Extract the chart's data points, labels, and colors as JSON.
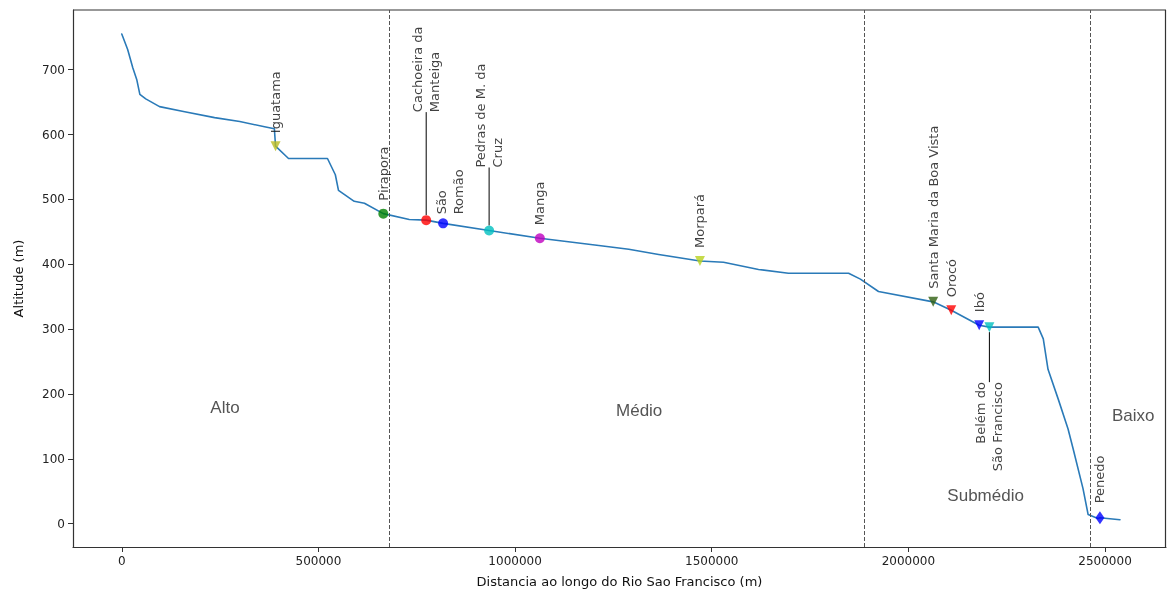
{
  "chart_data": {
    "type": "line",
    "xlabel": "Distancia ao longo do Rio Sao Francisco (m)",
    "ylabel": "Altitude (m)",
    "xlim": [
      -124000,
      2655000
    ],
    "ylim": [
      -36,
      792
    ],
    "xticks": [
      0,
      500000,
      1000000,
      1500000,
      2000000,
      2500000
    ],
    "yticks": [
      0,
      100,
      200,
      300,
      400,
      500,
      600,
      700
    ],
    "grid": false,
    "legend": false,
    "series": [
      {
        "color": "#2a7ab8",
        "marker": "none",
        "x": [
          0,
          15000,
          28000,
          38000,
          46000,
          61000,
          96000,
          160000,
          236000,
          300000,
          363000,
          388000,
          391000,
          424000,
          523000,
          543000,
          551000,
          591000,
          617000,
          665000,
          731000,
          774000,
          817000,
          934000,
          1063000,
          1213000,
          1289000,
          1365000,
          1470000,
          1530000,
          1619000,
          1695000,
          1848000,
          1878000,
          1924000,
          2063000,
          2109000,
          2180000,
          2206000,
          2330000,
          2343000,
          2355000,
          2381000,
          2406000,
          2419000,
          2444000,
          2457000,
          2482000,
          2487000,
          2538000
        ],
        "values": [
          755,
          731,
          703,
          685,
          662,
          655,
          643,
          635,
          626,
          620,
          612,
          609,
          582,
          563,
          563,
          538,
          514,
          497,
          494,
          478,
          469,
          468,
          463,
          452,
          440,
          429,
          423,
          415,
          405,
          403,
          392,
          386,
          386,
          377,
          358,
          342,
          329,
          306,
          303,
          303,
          285,
          238,
          192,
          146,
          115,
          54,
          14,
          8,
          9,
          6
        ]
      },
      {
        "type": "scatter",
        "name": "Iguatama",
        "color": "#bcbd22",
        "marker": "triangle",
        "x": [
          391000
        ],
        "values": [
          582
        ]
      },
      {
        "type": "scatter",
        "name": "Pirapora",
        "color": "#008000",
        "marker": "circle",
        "x": [
          665000
        ],
        "values": [
          478
        ]
      },
      {
        "type": "scatter",
        "name": "Cachoeira da\nManteiga",
        "color": "#ff0000",
        "marker": "circle",
        "x": [
          774000
        ],
        "values": [
          468
        ]
      },
      {
        "type": "scatter",
        "name": "São\nRomão",
        "color": "#0000ff",
        "marker": "circle",
        "x": [
          817000
        ],
        "values": [
          463
        ]
      },
      {
        "type": "scatter",
        "name": "Pedras de M. da\nCruz",
        "color": "#00bfbf",
        "marker": "circle",
        "x": [
          934000
        ],
        "values": [
          452
        ]
      },
      {
        "type": "scatter",
        "name": "Manga",
        "color": "#bf00bf",
        "marker": "circle",
        "x": [
          1063000
        ],
        "values": [
          440
        ]
      },
      {
        "type": "scatter",
        "name": "Morpará",
        "color": "#b8d21e",
        "marker": "triangle",
        "x": [
          1470000
        ],
        "values": [
          405
        ]
      },
      {
        "type": "scatter",
        "name": "Santa Maria da Boa Vista",
        "color": "#2f5f10",
        "marker": "triangle",
        "x": [
          2063000
        ],
        "values": [
          342
        ]
      },
      {
        "type": "scatter",
        "name": "Orocó",
        "color": "#ff0000",
        "marker": "triangle",
        "x": [
          2109000
        ],
        "values": [
          329
        ]
      },
      {
        "type": "scatter",
        "name": "Ibó",
        "color": "#0000ff",
        "marker": "triangle",
        "x": [
          2180000
        ],
        "values": [
          306
        ]
      },
      {
        "type": "scatter",
        "name": "Belém do\nSão Francisco",
        "color": "#00bfbf",
        "marker": "triangle",
        "x": [
          2206000
        ],
        "values": [
          303
        ]
      },
      {
        "type": "scatter",
        "name": "Penedo",
        "color": "#0000ff",
        "marker": "diamond",
        "x": [
          2487000
        ],
        "values": [
          9
        ]
      }
    ],
    "ref_lines": [
      {
        "axis": "x",
        "value": 680000,
        "color": "#555555",
        "line_style": "dashed"
      },
      {
        "axis": "x",
        "value": 1888000,
        "color": "#555555",
        "line_style": "dashed"
      },
      {
        "axis": "x",
        "value": 2462000,
        "color": "#555555",
        "line_style": "dashed"
      }
    ],
    "annotations": [
      "Alto",
      "Médio",
      "Submédio",
      "Baixo"
    ]
  }
}
